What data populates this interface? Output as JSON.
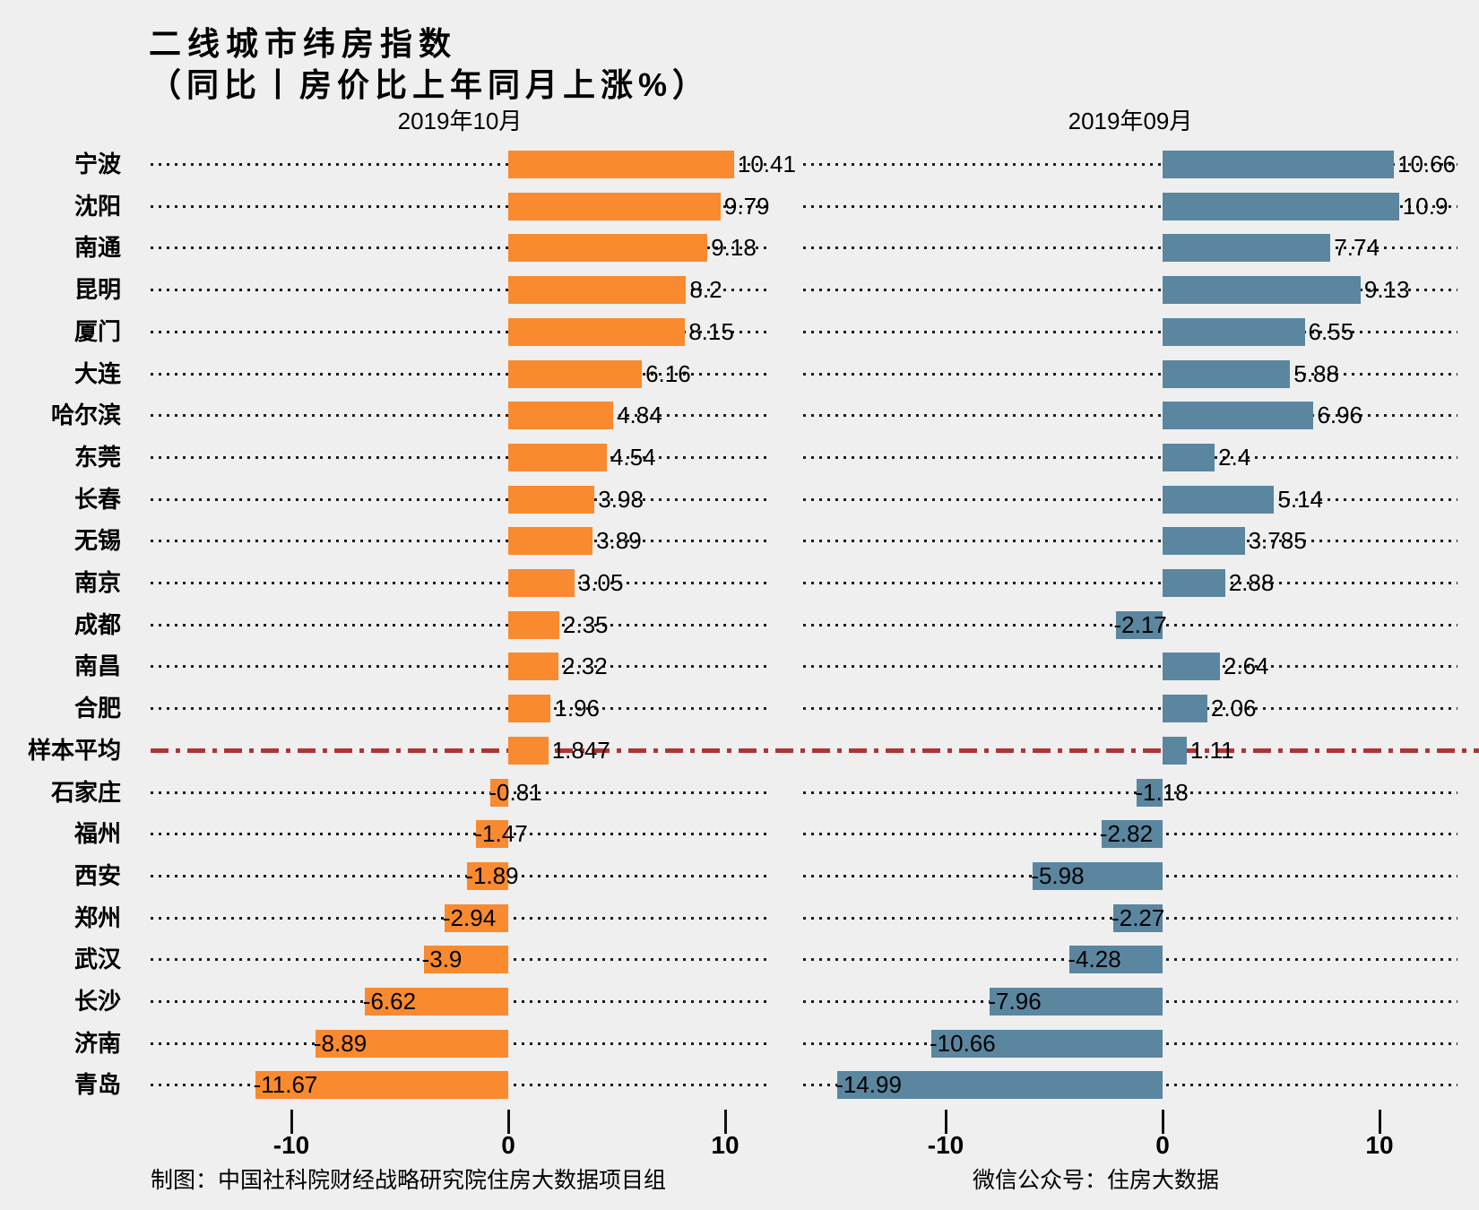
{
  "title": {
    "line1": "二线城市纬房指数",
    "line2": "（同比丨房价比上年同月上涨%）"
  },
  "panels": [
    {
      "header": "2019年10月"
    },
    {
      "header": "2019年09月"
    }
  ],
  "axis": {
    "tick_labels": [
      "-10",
      "0",
      "10"
    ]
  },
  "footer": {
    "left": "制图：中国社科院财经战略研究院住房大数据项目组",
    "right": "微信公众号：住房大数据"
  },
  "colors": {
    "october_bar": "#F98A2F",
    "september_bar": "#5A86A0",
    "average_line": "#B03434",
    "leader_dots": "#1C1C1C",
    "background": "#EFEFEF",
    "text": "#000000"
  },
  "average_row_label": "样本平均",
  "chart_data": {
    "type": "bar",
    "orientation": "horizontal",
    "title": "二线城市纬房指数（同比丨房价比上年同月上涨%）",
    "xlabel": "",
    "ylabel": "",
    "x_ticks": [
      -10,
      0,
      10
    ],
    "xlim": [
      -16.5,
      12.1
    ],
    "grid": "dotted row leader lines",
    "legend_position": "panel headers (faceted, two panels)",
    "annotations": "red dash-dot horizontal reference line across the 样本平均 (sample average) row",
    "categories": [
      "宁波",
      "沈阳",
      "南通",
      "昆明",
      "厦门",
      "大连",
      "哈尔滨",
      "东莞",
      "长春",
      "无锡",
      "南京",
      "成都",
      "南昌",
      "合肥",
      "样本平均",
      "石家庄",
      "福州",
      "西安",
      "郑州",
      "武汉",
      "长沙",
      "济南",
      "青岛"
    ],
    "series": [
      {
        "name": "2019年10月",
        "color": "#F98A2F",
        "values": [
          10.41,
          9.79,
          9.18,
          8.2,
          8.15,
          6.16,
          4.84,
          4.54,
          3.98,
          3.89,
          3.05,
          2.35,
          2.32,
          1.96,
          1.847,
          -0.81,
          -1.47,
          -1.89,
          -2.94,
          -3.9,
          -6.62,
          -8.89,
          -11.67
        ],
        "labels": [
          "10.41",
          "9.79",
          "9.18",
          "8.2",
          "8.15",
          "6.16",
          "4.84",
          "4.54",
          "3.98",
          "3.89",
          "3.05",
          "2.35",
          "2.32",
          "1.96",
          "1.847",
          "-0.81",
          "-1.47",
          "-1.89",
          "-2.94",
          "-3.9",
          "-6.62",
          "-8.89",
          "-11.67"
        ]
      },
      {
        "name": "2019年09月",
        "color": "#5A86A0",
        "values": [
          10.66,
          10.9,
          7.74,
          9.13,
          6.55,
          5.88,
          6.96,
          2.4,
          5.14,
          3.785,
          2.88,
          -2.17,
          2.64,
          2.06,
          1.11,
          -1.18,
          -2.82,
          -5.98,
          -2.27,
          -4.28,
          -7.96,
          -10.66,
          -14.99
        ],
        "labels": [
          "10.66",
          "10.9",
          "7.74",
          "9.13",
          "6.55",
          "5.88",
          "6.96",
          "2.4",
          "5.14",
          "3.785",
          "2.88",
          "-2.17",
          "2.64",
          "2.06",
          "1.11",
          "-1.18",
          "-2.82",
          "-5.98",
          "-2.27",
          "-4.28",
          "-7.96",
          "-10.66",
          "-14.99"
        ]
      }
    ]
  }
}
